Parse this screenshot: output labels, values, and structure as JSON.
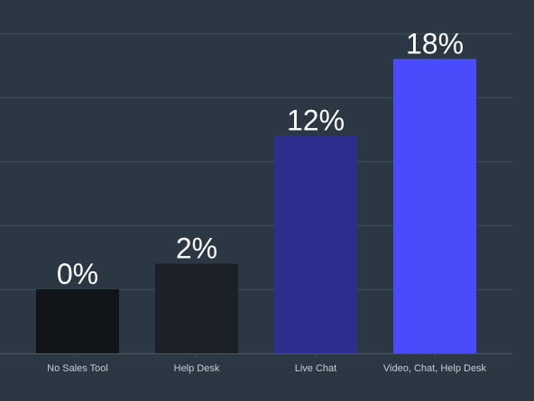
{
  "chart_data": {
    "type": "bar",
    "categories": [
      "No Sales Tool",
      "Help Desk",
      "Live Chat",
      "Video, Chat, Help Desk"
    ],
    "display_values": [
      "0%",
      "2%",
      "12%",
      "18%"
    ],
    "values": [
      10,
      14,
      34,
      46
    ],
    "ylim": [
      0,
      50
    ],
    "grid": true,
    "title": "",
    "xlabel": "",
    "ylabel": "",
    "colors": {
      "background": "#2b3844",
      "grid": "#3b4855",
      "axis": "#46525e",
      "tick_label": "#c6ccd2",
      "value_label": "#ffffff",
      "bars": [
        "#111519",
        "#1b2127",
        "#2c2e8d",
        "#4a4cfb"
      ]
    }
  }
}
